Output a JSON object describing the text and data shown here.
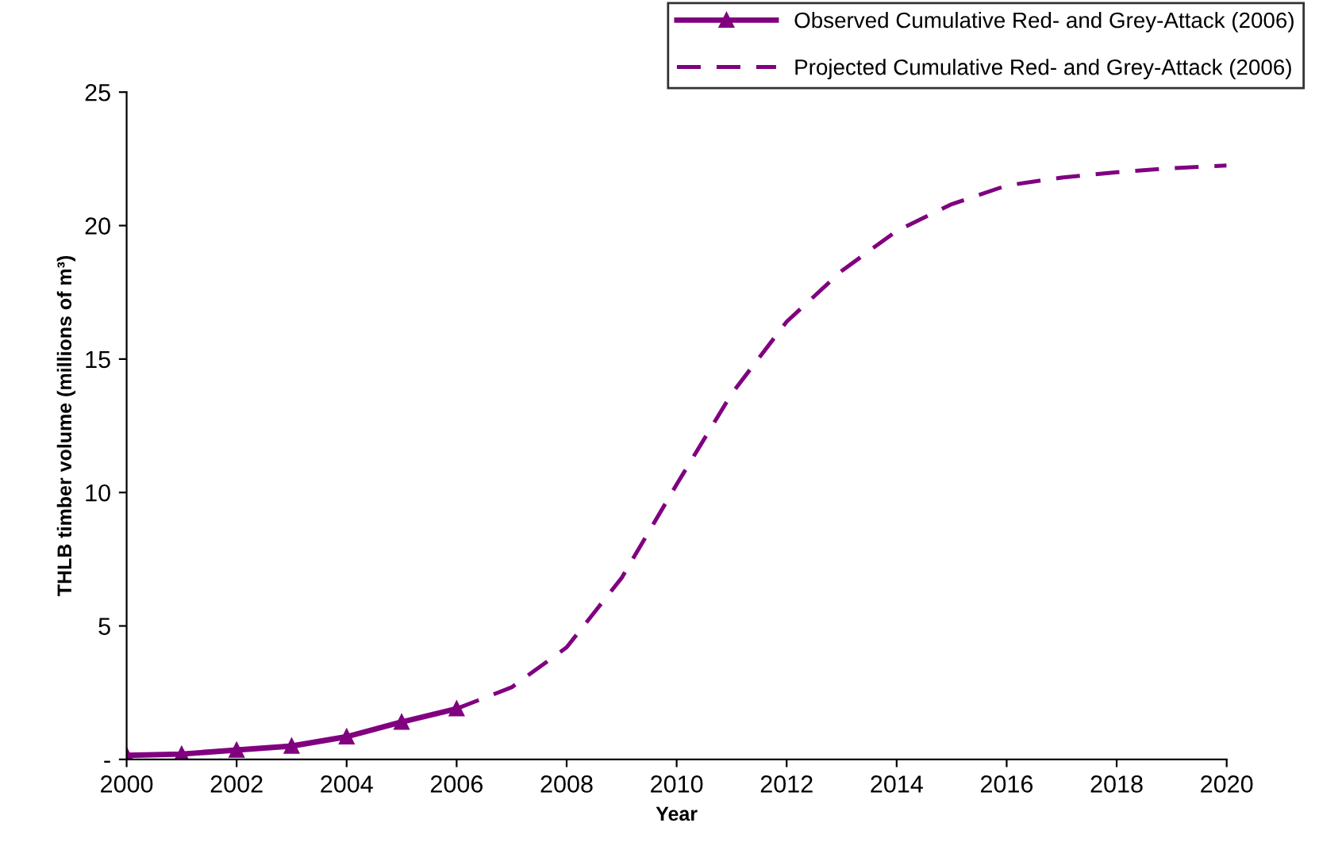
{
  "chart_data": {
    "type": "line",
    "xlabel": "Year",
    "ylabel": "THLB timber volume (millions of m³)",
    "xlim": [
      2000,
      2020
    ],
    "xticks": [
      2000,
      2002,
      2004,
      2006,
      2008,
      2010,
      2012,
      2014,
      2016,
      2018,
      2020
    ],
    "ylim": [
      0,
      25
    ],
    "yticks": [
      {
        "value": 0,
        "label": "-"
      },
      5,
      10,
      15,
      20,
      25
    ],
    "grid": false,
    "legend": "top right",
    "series": [
      {
        "name": "Observed Cumulative Red- and Grey-Attack (2006)",
        "color": "#800080",
        "marker": "triangle",
        "line_style": "solid",
        "x": [
          2000,
          2001,
          2002,
          2003,
          2004,
          2005,
          2006
        ],
        "values": [
          0.15,
          0.2,
          0.35,
          0.5,
          0.85,
          1.4,
          1.9
        ]
      },
      {
        "name": "Projected Cumulative Red- and Grey-Attack (2006)",
        "color": "#800080",
        "marker": "none",
        "line_style": "dashed",
        "x": [
          2006,
          2007,
          2008,
          2009,
          2010,
          2011,
          2012,
          2013,
          2014,
          2015,
          2016,
          2017,
          2018,
          2019,
          2020
        ],
        "values": [
          1.9,
          2.7,
          4.2,
          6.8,
          10.3,
          13.7,
          16.4,
          18.3,
          19.8,
          20.8,
          21.5,
          21.8,
          22.0,
          22.15,
          22.25
        ]
      }
    ]
  }
}
